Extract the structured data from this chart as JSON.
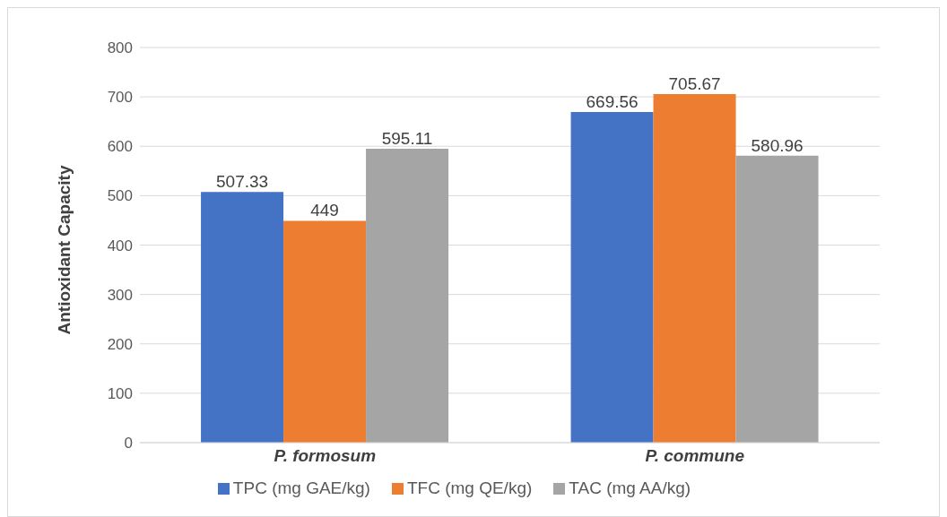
{
  "chart_data": {
    "type": "bar",
    "ylabel": "Antioxidant Capacity",
    "categories": [
      "P. formosum",
      "P. commune"
    ],
    "series": [
      {
        "name": "TPC (mg GAE/kg)",
        "color": "#4472c4",
        "values": [
          507.33,
          669.56
        ]
      },
      {
        "name": "TFC (mg QE/kg)",
        "color": "#ed7d31",
        "values": [
          449,
          705.67
        ]
      },
      {
        "name": "TAC (mg AA/kg)",
        "color": "#a5a5a5",
        "values": [
          595.11,
          580.96
        ]
      }
    ],
    "ylim": [
      0,
      800
    ],
    "yticks": [
      0,
      100,
      200,
      300,
      400,
      500,
      600,
      700,
      800
    ],
    "grid": "y",
    "legend": "bottom",
    "data_labels": true
  }
}
